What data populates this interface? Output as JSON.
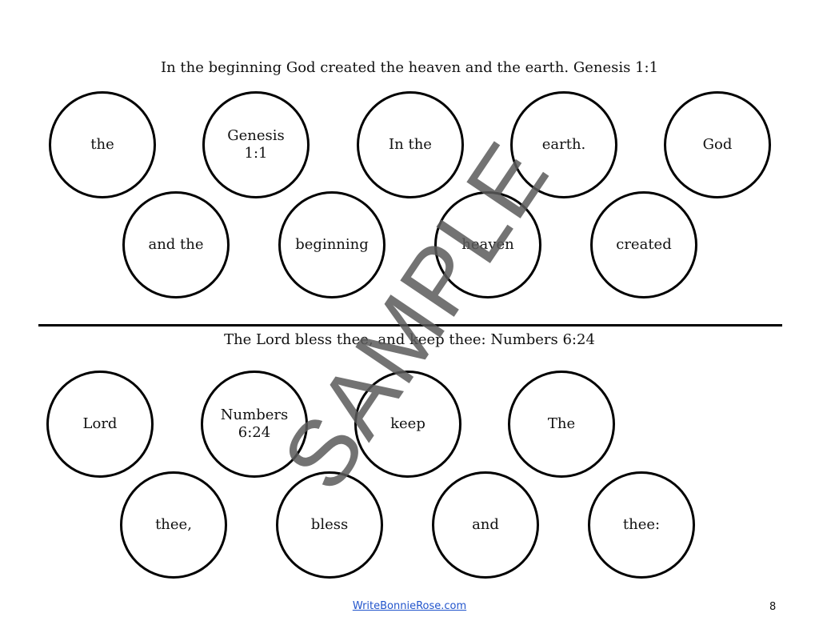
{
  "sections": [
    {
      "title": "In the beginning God created the heaven and the earth. Genesis 1:1",
      "words": [
        "the",
        "Genesis 1:1",
        "In the",
        "earth.",
        "God",
        "and the",
        "beginning",
        "heaven",
        "created"
      ]
    },
    {
      "title": "The Lord bless thee, and keep thee: Numbers 6:24",
      "words": [
        "Lord",
        "Numbers 6:24",
        "keep",
        "The",
        "thee,",
        "bless",
        "and",
        "thee:"
      ]
    }
  ],
  "watermark": "SAMPLE",
  "footer": {
    "link": "WriteBonnieRose.com",
    "page_number": "8"
  }
}
